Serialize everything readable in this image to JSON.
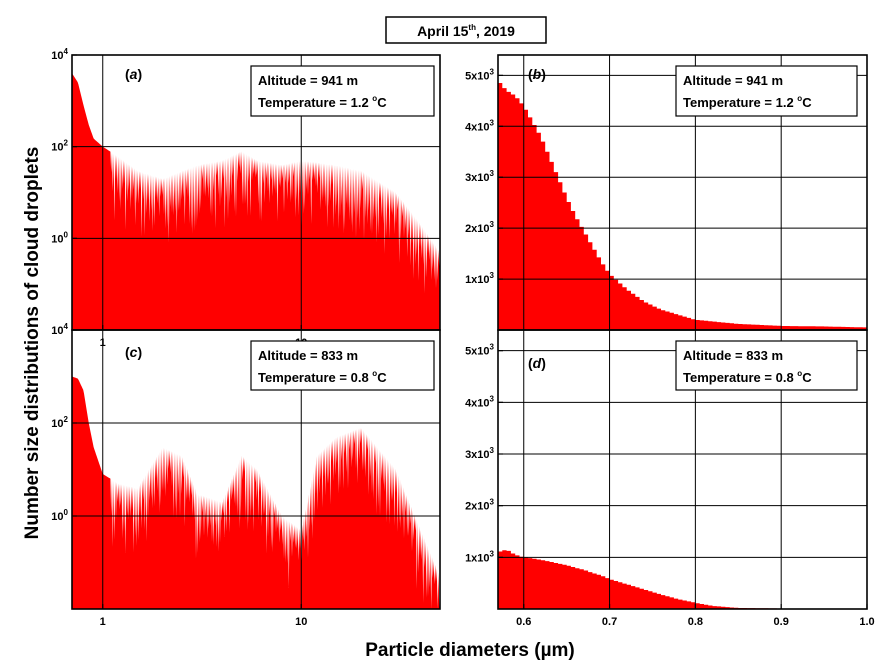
{
  "title": {
    "text": "April 15",
    "sup": "th",
    "suffix": ", 2019"
  },
  "xlabel": {
    "text": "Particle diameters (",
    "unit": "µm",
    "close": ")"
  },
  "ylabel": "Number size distributions of cloud droplets",
  "colors": {
    "fill": "#ff0000",
    "axis": "#000000"
  },
  "chart_data": [
    {
      "panel_label": "a",
      "type": "area",
      "x_scale": "log",
      "y_scale": "log",
      "xlim": [
        0.7,
        50
      ],
      "ylim": [
        0.01,
        10000
      ],
      "x_ticks": [
        {
          "value": 1,
          "label": "1"
        },
        {
          "value": 10,
          "label": "10"
        }
      ],
      "y_ticks": [
        {
          "value": 10000,
          "base": "10",
          "exp": "4"
        },
        {
          "value": 100,
          "base": "10",
          "exp": "2"
        },
        {
          "value": 1,
          "base": "10",
          "exp": "0"
        }
      ],
      "annotation": {
        "line1": "Altitude = 941 m",
        "line2_prefix": "Temperature = 1.2 ",
        "line2_deg": "o",
        "line2_unit": "C"
      },
      "x": [
        0.7,
        0.75,
        0.8,
        0.85,
        0.9,
        1.0,
        1.2,
        1.5,
        2,
        3,
        4,
        5,
        6,
        8,
        10,
        15,
        20,
        30,
        40,
        50
      ],
      "values": [
        4000,
        2500,
        800,
        300,
        150,
        100,
        60,
        30,
        20,
        40,
        50,
        80,
        50,
        40,
        50,
        40,
        30,
        10,
        2,
        0.5
      ]
    },
    {
      "panel_label": "b",
      "type": "bar",
      "x_scale": "linear",
      "y_scale": "linear",
      "xlim": [
        0.57,
        1.0
      ],
      "ylim": [
        0,
        5400
      ],
      "x_ticks": [],
      "y_ticks": [
        {
          "value": 5000,
          "mant": "5x10",
          "exp": "3"
        },
        {
          "value": 4000,
          "mant": "4x10",
          "exp": "3"
        },
        {
          "value": 3000,
          "mant": "3x10",
          "exp": "3"
        },
        {
          "value": 2000,
          "mant": "2x10",
          "exp": "3"
        },
        {
          "value": 1000,
          "mant": "1x10",
          "exp": "3"
        }
      ],
      "annotation": {
        "line1": "Altitude = 941 m",
        "line2_prefix": "Temperature = 1.2 ",
        "line2_deg": "o",
        "line2_unit": "C"
      },
      "x": [
        0.57,
        0.58,
        0.59,
        0.6,
        0.61,
        0.62,
        0.63,
        0.64,
        0.65,
        0.66,
        0.67,
        0.68,
        0.69,
        0.7,
        0.72,
        0.74,
        0.76,
        0.78,
        0.8,
        0.85,
        0.9,
        0.95,
        1.0
      ],
      "values": [
        4900,
        4700,
        4600,
        4400,
        4100,
        3800,
        3400,
        3000,
        2600,
        2250,
        1950,
        1650,
        1350,
        1100,
        800,
        560,
        400,
        300,
        200,
        120,
        80,
        70,
        50
      ]
    },
    {
      "panel_label": "c",
      "type": "area",
      "x_scale": "log",
      "y_scale": "log",
      "xlim": [
        0.7,
        50
      ],
      "ylim": [
        0.01,
        10000
      ],
      "x_ticks": [
        {
          "value": 1,
          "label": "1"
        },
        {
          "value": 10,
          "label": "10"
        }
      ],
      "y_ticks": [
        {
          "value": 10000,
          "base": "10",
          "exp": "4"
        },
        {
          "value": 100,
          "base": "10",
          "exp": "2"
        },
        {
          "value": 1,
          "base": "10",
          "exp": "0"
        }
      ],
      "annotation": {
        "line1": "Altitude = 833 m",
        "line2_prefix": "Temperature = 0.8 ",
        "line2_deg": "o",
        "line2_unit": "C"
      },
      "x": [
        0.7,
        0.75,
        0.8,
        0.85,
        0.9,
        1.0,
        1.2,
        1.5,
        2,
        2.5,
        3,
        4,
        5,
        6,
        8,
        10,
        12,
        15,
        20,
        30,
        40,
        50
      ],
      "values": [
        1000,
        900,
        500,
        100,
        30,
        8,
        5,
        4,
        30,
        20,
        3,
        2,
        20,
        10,
        1,
        0.5,
        20,
        50,
        80,
        10,
        0.5,
        0.05
      ]
    },
    {
      "panel_label": "d",
      "type": "bar",
      "x_scale": "linear",
      "y_scale": "linear",
      "xlim": [
        0.57,
        1.0
      ],
      "ylim": [
        0,
        5400
      ],
      "x_ticks": [
        {
          "value": 0.6,
          "label": "0.6"
        },
        {
          "value": 0.7,
          "label": "0.7"
        },
        {
          "value": 0.8,
          "label": "0.8"
        },
        {
          "value": 0.9,
          "label": "0.9"
        },
        {
          "value": 1.0,
          "label": "1.0"
        }
      ],
      "y_ticks": [
        {
          "value": 5000,
          "mant": "5x10",
          "exp": "3"
        },
        {
          "value": 4000,
          "mant": "4x10",
          "exp": "3"
        },
        {
          "value": 3000,
          "mant": "3x10",
          "exp": "3"
        },
        {
          "value": 2000,
          "mant": "2x10",
          "exp": "3"
        },
        {
          "value": 1000,
          "mant": "1x10",
          "exp": "3"
        }
      ],
      "annotation": {
        "line1": "Altitude = 833 m",
        "line2_prefix": "Temperature = 0.8 ",
        "line2_deg": "o",
        "line2_unit": "C"
      },
      "x": [
        0.57,
        0.58,
        0.59,
        0.6,
        0.61,
        0.62,
        0.63,
        0.64,
        0.65,
        0.66,
        0.67,
        0.68,
        0.69,
        0.7,
        0.72,
        0.74,
        0.76,
        0.78,
        0.8,
        0.82,
        0.85,
        0.9,
        0.95,
        1.0
      ],
      "values": [
        1100,
        1150,
        1050,
        1000,
        980,
        950,
        920,
        880,
        850,
        800,
        760,
        700,
        650,
        580,
        480,
        380,
        280,
        190,
        120,
        60,
        20,
        10,
        5,
        0
      ]
    }
  ]
}
